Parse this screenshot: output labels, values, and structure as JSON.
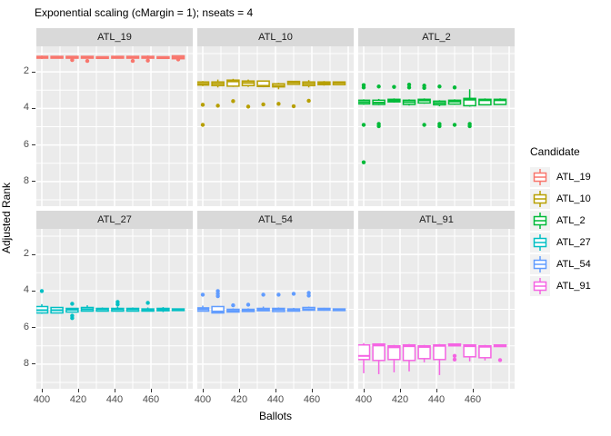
{
  "title": "Exponential scaling (cMargin = 1); nseats = 4",
  "axes": {
    "x_label": "Ballots",
    "y_label": "Adjusted Rank",
    "x_ticks": [
      400,
      420,
      440,
      460
    ],
    "y_ticks": [
      2,
      4,
      6,
      8
    ]
  },
  "legend": {
    "title": "Candidate",
    "entries": [
      {
        "label": "ATL_19",
        "color": "#F8766D"
      },
      {
        "label": "ATL_10",
        "color": "#B79F00"
      },
      {
        "label": "ATL_2",
        "color": "#00BA38"
      },
      {
        "label": "ATL_27",
        "color": "#00BFC4"
      },
      {
        "label": "ATL_54",
        "color": "#619CFF"
      },
      {
        "label": "ATL_91",
        "color": "#F564E3"
      }
    ]
  },
  "theme": {
    "panel_bg": "#EBEBEB",
    "strip_bg": "#D9D9D9",
    "gridline": "#FFFFFF",
    "legend_key_bg": "#F2F2F2",
    "tick_text": "#4d4d4d"
  },
  "chart_data": {
    "type": "boxplot",
    "title": "Exponential scaling (cMargin = 1); nseats = 4",
    "xlabel": "Ballots",
    "ylabel": "Adjusted Rank",
    "facet_variable": "Candidate",
    "y_reversed": true,
    "x_domain": [
      397,
      483
    ],
    "y_domain": [
      0.6,
      9.35
    ],
    "x_major": [
      400,
      420,
      440,
      460,
      480
    ],
    "x_minor": [
      410,
      430,
      450,
      470
    ],
    "y_major": [
      2,
      4,
      6,
      8
    ],
    "y_minor": [
      1,
      3,
      5,
      7,
      9
    ],
    "x": [
      400,
      408.3,
      416.7,
      425,
      433.3,
      441.7,
      450,
      458.3,
      466.7,
      475
    ],
    "box_format": [
      "whisker_min",
      "box_min",
      "median",
      "box_max",
      "whisker_max",
      "outliers"
    ],
    "facets": [
      {
        "name": "ATL_19",
        "color": "#F8766D",
        "boxes": [
          [
            1.1,
            1.15,
            1.2,
            1.25,
            1.3,
            []
          ],
          [
            1.15,
            1.15,
            1.2,
            1.25,
            1.25,
            []
          ],
          [
            1.15,
            1.15,
            1.2,
            1.25,
            1.25,
            [
              1.35
            ]
          ],
          [
            1.15,
            1.15,
            1.2,
            1.25,
            1.25,
            [
              1.4
            ]
          ],
          [
            1.15,
            1.17,
            1.2,
            1.23,
            1.25,
            []
          ],
          [
            1.15,
            1.15,
            1.2,
            1.25,
            1.25,
            []
          ],
          [
            1.15,
            1.15,
            1.2,
            1.25,
            1.25,
            [
              1.4
            ]
          ],
          [
            1.1,
            1.15,
            1.2,
            1.25,
            1.3,
            [
              1.38
            ]
          ],
          [
            1.15,
            1.17,
            1.2,
            1.23,
            1.25,
            []
          ],
          [
            1.1,
            1.12,
            1.2,
            1.28,
            1.3,
            [
              1.32
            ]
          ]
        ]
      },
      {
        "name": "ATL_10",
        "color": "#B79F00",
        "boxes": [
          [
            2.5,
            2.55,
            2.65,
            2.72,
            2.78,
            [
              3.8,
              4.9
            ]
          ],
          [
            2.42,
            2.55,
            2.65,
            2.75,
            2.85,
            [
              3.85
            ]
          ],
          [
            2.38,
            2.45,
            2.52,
            2.78,
            2.82,
            [
              3.6
            ]
          ],
          [
            2.42,
            2.5,
            2.6,
            2.75,
            2.82,
            [
              3.9
            ]
          ],
          [
            2.48,
            2.5,
            2.76,
            2.8,
            2.84,
            [
              3.78
            ]
          ],
          [
            2.6,
            2.65,
            2.76,
            2.82,
            2.95,
            [
              3.75
            ]
          ],
          [
            2.5,
            2.52,
            2.58,
            2.68,
            2.7,
            [
              3.88
            ]
          ],
          [
            2.45,
            2.55,
            2.65,
            2.75,
            2.85,
            [
              3.58
            ]
          ],
          [
            2.5,
            2.55,
            2.62,
            2.7,
            2.75,
            []
          ],
          [
            2.52,
            2.55,
            2.6,
            2.7,
            2.72,
            []
          ]
        ]
      },
      {
        "name": "ATL_2",
        "color": "#00BA38",
        "boxes": [
          [
            3.5,
            3.55,
            3.65,
            3.75,
            3.8,
            [
              2.72,
              2.85,
              4.9,
              6.95
            ]
          ],
          [
            3.48,
            3.55,
            3.68,
            3.78,
            3.82,
            [
              2.8,
              4.85,
              4.97
            ]
          ],
          [
            3.45,
            3.5,
            3.56,
            3.64,
            3.68,
            [
              2.82
            ]
          ],
          [
            3.5,
            3.55,
            3.65,
            3.78,
            3.84,
            [
              2.7,
              2.85
            ]
          ],
          [
            3.45,
            3.5,
            3.56,
            3.7,
            3.74,
            [
              2.75,
              2.88,
              4.9
            ]
          ],
          [
            3.55,
            3.6,
            3.7,
            3.8,
            3.88,
            [
              2.8,
              4.85,
              4.97
            ]
          ],
          [
            3.5,
            3.55,
            3.62,
            3.76,
            3.8,
            [
              2.85,
              4.9
            ]
          ],
          [
            2.95,
            3.45,
            3.52,
            3.85,
            3.9,
            [
              4.85,
              4.97
            ]
          ],
          [
            3.45,
            3.5,
            3.55,
            3.8,
            3.82,
            []
          ],
          [
            3.45,
            3.5,
            3.55,
            3.78,
            3.8,
            []
          ]
        ]
      },
      {
        "name": "ATL_27",
        "color": "#00BFC4",
        "boxes": [
          [
            4.72,
            4.85,
            5.05,
            5.2,
            5.25,
            [
              4.0
            ]
          ],
          [
            4.88,
            4.9,
            5.05,
            5.2,
            5.22,
            []
          ],
          [
            4.93,
            4.95,
            5.02,
            5.15,
            5.18,
            [
              4.7,
              5.35,
              5.48
            ]
          ],
          [
            4.78,
            4.9,
            5.0,
            5.1,
            5.12,
            []
          ],
          [
            4.9,
            4.95,
            5.0,
            5.1,
            5.12,
            []
          ],
          [
            4.85,
            4.95,
            5.0,
            5.1,
            5.12,
            [
              4.6,
              4.73
            ]
          ],
          [
            4.9,
            4.95,
            5.0,
            5.1,
            5.1,
            []
          ],
          [
            4.9,
            4.98,
            5.02,
            5.1,
            5.1,
            [
              4.65
            ]
          ],
          [
            4.88,
            4.95,
            5.0,
            5.08,
            5.15,
            []
          ],
          [
            4.95,
            4.98,
            5.02,
            5.06,
            5.08,
            []
          ]
        ]
      },
      {
        "name": "ATL_54",
        "color": "#619CFF",
        "boxes": [
          [
            4.8,
            4.92,
            5.0,
            5.1,
            5.12,
            [
              4.2
            ]
          ],
          [
            4.82,
            4.85,
            5.12,
            5.2,
            5.22,
            [
              4.0,
              4.15,
              4.28
            ]
          ],
          [
            4.95,
            5.0,
            5.08,
            5.15,
            5.17,
            [
              4.78
            ]
          ],
          [
            4.95,
            5.0,
            5.05,
            5.12,
            5.15,
            [
              4.75
            ]
          ],
          [
            4.85,
            4.95,
            5.0,
            5.08,
            5.1,
            [
              4.2
            ]
          ],
          [
            4.9,
            4.95,
            5.02,
            5.12,
            5.15,
            [
              4.2
            ]
          ],
          [
            4.92,
            4.98,
            5.02,
            5.1,
            5.12,
            [
              4.15
            ]
          ],
          [
            4.85,
            4.9,
            5.0,
            5.05,
            5.08,
            [
              4.1,
              4.25
            ]
          ],
          [
            4.92,
            4.95,
            5.0,
            5.05,
            5.08,
            []
          ],
          [
            4.95,
            4.98,
            5.02,
            5.06,
            5.08,
            []
          ]
        ]
      },
      {
        "name": "ATL_91",
        "color": "#F564E3",
        "boxes": [
          [
            6.85,
            6.95,
            7.55,
            7.75,
            8.5,
            []
          ],
          [
            6.88,
            6.9,
            6.98,
            7.8,
            8.55,
            []
          ],
          [
            6.95,
            7.0,
            7.08,
            7.75,
            8.45,
            []
          ],
          [
            6.9,
            6.95,
            7.02,
            7.8,
            8.4,
            []
          ],
          [
            6.95,
            7.0,
            7.06,
            7.7,
            7.9,
            []
          ],
          [
            6.9,
            6.95,
            7.0,
            7.75,
            8.6,
            []
          ],
          [
            6.88,
            6.9,
            6.95,
            7.0,
            7.02,
            [
              7.55,
              7.75
            ]
          ],
          [
            6.92,
            6.95,
            7.02,
            7.6,
            7.85,
            []
          ],
          [
            6.95,
            7.0,
            7.05,
            7.65,
            7.8,
            []
          ],
          [
            6.92,
            6.95,
            6.98,
            7.0,
            7.02,
            [
              7.78
            ]
          ]
        ]
      }
    ]
  }
}
